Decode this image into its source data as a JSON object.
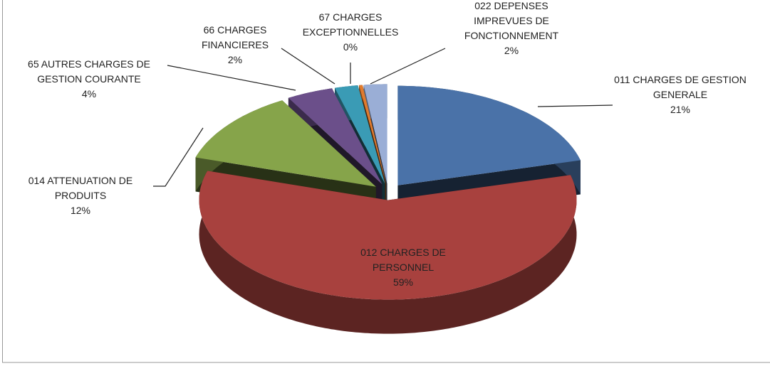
{
  "chart_data": {
    "type": "pie3d",
    "categories": [
      "011 CHARGES DE GESTION GENERALE",
      "012 CHARGES DE PERSONNEL",
      "014 ATTENUATION DE PRODUITS",
      "65 AUTRES CHARGES DE GESTION COURANTE",
      "66 CHARGES FINANCIERES",
      "67 CHARGES EXCEPTIONNELLES",
      "022 DEPENSES IMPREVUES DE FONCTIONNEMENT"
    ],
    "values": [
      21,
      59,
      12,
      4,
      2,
      0.3,
      2
    ],
    "value_labels": [
      "21%",
      "59%",
      "12%",
      "4%",
      "2%",
      "0%",
      "2%"
    ],
    "colors": [
      "#4a72a8",
      "#a8413e",
      "#86a44a",
      "#6b4f8a",
      "#3a9bb5",
      "#e07b2e",
      "#9aaed6"
    ]
  }
}
